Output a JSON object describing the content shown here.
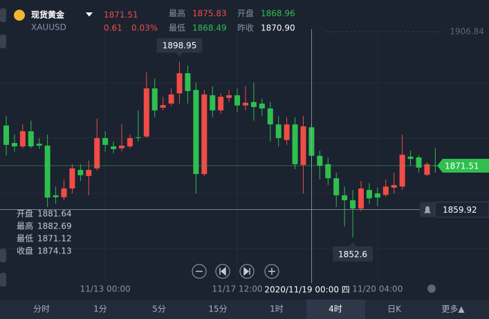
{
  "header": {
    "name": "现货黄金",
    "symbol": "XAUUSD",
    "price": "1871.51",
    "change": "0.61",
    "change_pct": "0.03%",
    "stats": [
      {
        "label": "最高",
        "value": "1875.83",
        "color": "#ef4d45"
      },
      {
        "label": "开盘",
        "value": "1868.96",
        "color": "#2fbf4f"
      },
      {
        "label": "最低",
        "value": "1868.49",
        "color": "#2fbf4f"
      },
      {
        "label": "昨收",
        "value": "1870.90",
        "color": "#ffffff"
      }
    ]
  },
  "chart_data": {
    "type": "candlestick",
    "up_color": "#ef4d45",
    "down_color": "#2fbf4f",
    "ylim": [
      1841.45,
      1906.84
    ],
    "yticks": [
      1906.84
    ],
    "series": {
      "open": [
        1882.1,
        1877.5,
        1876.6,
        1880.6,
        1877.3,
        1876.8,
        1863.7,
        1863.2,
        1865.5,
        1870.4,
        1868.8,
        1870.8,
        1878.8,
        1876.6,
        1876.1,
        1876.6,
        1879.0,
        1879.2,
        1891.9,
        1886.8,
        1887.9,
        1890.6,
        1895.9,
        1891.5,
        1869.3,
        1890.1,
        1886.1,
        1889.4,
        1890.1,
        1887.4,
        1888.3,
        1887.9,
        1886.6,
        1882.4,
        1878.3,
        1882.4,
        1871.7,
        1881.64,
        1874.1,
        1871.9,
        1868.2,
        1863.7,
        1862.4,
        1860.2,
        1865.1,
        1864.2,
        1863.8,
        1865.7,
        1866.0,
        1873.9,
        1873.7,
        1869.1,
        1871.6
      ],
      "high": [
        1884.6,
        1879.7,
        1882.4,
        1883.4,
        1878.8,
        1879.7,
        1866.0,
        1867.9,
        1871.9,
        1871.9,
        1872.9,
        1883.9,
        1880.6,
        1877.9,
        1882.4,
        1879.7,
        1886.1,
        1896.1,
        1894.5,
        1889.7,
        1891.9,
        1898.95,
        1897.9,
        1893.4,
        1891.5,
        1892.5,
        1890.6,
        1891.5,
        1891.9,
        1892.5,
        1893.4,
        1889.2,
        1888.3,
        1884.6,
        1884.3,
        1884.3,
        1884.6,
        1882.69,
        1875.5,
        1873.7,
        1869.7,
        1866.0,
        1865.1,
        1867.5,
        1866.9,
        1865.7,
        1867.9,
        1869.7,
        1879.7,
        1875.5,
        1874.2,
        1872.4,
        1876.1
      ],
      "low": [
        1874.2,
        1875.2,
        1876.1,
        1876.1,
        1875.9,
        1860.6,
        1861.5,
        1862.4,
        1864.2,
        1867.5,
        1863.7,
        1870.2,
        1875.2,
        1874.8,
        1875.3,
        1876.1,
        1877.9,
        1878.8,
        1884.3,
        1886.1,
        1887.3,
        1887.9,
        1887.9,
        1864.2,
        1868.8,
        1884.3,
        1885.2,
        1888.3,
        1885.7,
        1886.1,
        1883.4,
        1884.6,
        1877.9,
        1876.6,
        1877.0,
        1870.6,
        1864.2,
        1871.12,
        1867.9,
        1866.4,
        1860.6,
        1855.5,
        1852.6,
        1859.5,
        1861.5,
        1860.9,
        1863.3,
        1864.2,
        1865.1,
        1871.5,
        1869.7,
        1868.8,
        1869.7
      ],
      "close": [
        1877.0,
        1876.6,
        1880.6,
        1876.6,
        1876.8,
        1863.1,
        1863.2,
        1865.5,
        1870.8,
        1869.0,
        1870.4,
        1878.8,
        1877.0,
        1875.9,
        1876.8,
        1878.8,
        1878.8,
        1891.9,
        1886.1,
        1887.5,
        1890.3,
        1895.9,
        1891.2,
        1869.3,
        1890.3,
        1886.1,
        1889.7,
        1890.1,
        1887.4,
        1888.1,
        1887.0,
        1886.6,
        1882.4,
        1878.8,
        1882.4,
        1871.9,
        1881.9,
        1874.13,
        1871.5,
        1868.2,
        1863.7,
        1862.4,
        1860.2,
        1865.5,
        1862.9,
        1863.1,
        1866.0,
        1866.4,
        1874.4,
        1873.3,
        1871.0,
        1871.9,
        1871.51
      ]
    },
    "xticks": [
      {
        "value": 12,
        "label": "11/13 00:00"
      },
      {
        "value": 28,
        "label": "11/17 12:00"
      },
      {
        "value": 45,
        "label": "11/20 04:00"
      }
    ],
    "crosshair": {
      "index": 37,
      "price": 1859.92,
      "time": "2020/11/19 00:00 四",
      "info": [
        "开盘",
        "最高",
        "最低",
        "收盘"
      ]
    }
  },
  "tabs": [
    {
      "label": "分时"
    },
    {
      "label": "1分"
    },
    {
      "label": "5分"
    },
    {
      "label": "15分"
    },
    {
      "label": "1时"
    },
    {
      "label": "4时",
      "selected": true
    },
    {
      "label": "日K"
    },
    {
      "label": "更多▲"
    }
  ]
}
